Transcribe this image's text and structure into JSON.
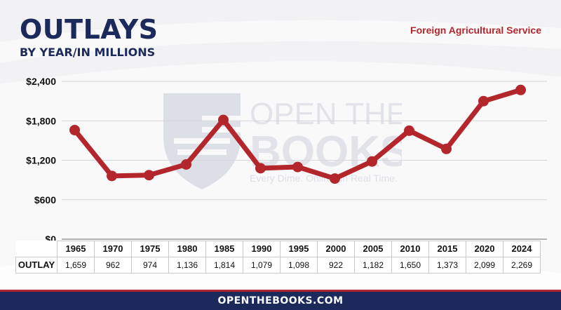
{
  "header": {
    "title": "OUTLAYS",
    "subtitle": "BY YEAR/IN MILLIONS",
    "agency": "Foreign Agricultural Service"
  },
  "watermark": {
    "line1": "OPEN THE",
    "line2": "BOOKS",
    "tagline": "Every Dime. Online. In Real Time."
  },
  "footer": {
    "text": "OPENTHEBOOKS.COM"
  },
  "colors": {
    "line": "#b3262c",
    "navy": "#1b2a5a",
    "accent": "#b3262c"
  },
  "table": {
    "row_label": "OUTLAY"
  },
  "chart_data": {
    "type": "line",
    "title": "OUTLAYS",
    "subtitle": "BY YEAR/IN MILLIONS",
    "categories": [
      "1965",
      "1970",
      "1975",
      "1980",
      "1985",
      "1990",
      "1995",
      "2000",
      "2005",
      "2010",
      "2015",
      "2020",
      "2024"
    ],
    "values": [
      1659,
      962,
      974,
      1136,
      1814,
      1079,
      1098,
      922,
      1182,
      1650,
      1373,
      2099,
      2269
    ],
    "value_labels": [
      "1,659",
      "962",
      "974",
      "1,136",
      "1,814",
      "1,079",
      "1,098",
      "922",
      "1,182",
      "1,650",
      "1,373",
      "2,099",
      "2,269"
    ],
    "yticks": [
      0,
      600,
      1200,
      1800,
      2400
    ],
    "ytick_labels": [
      "$0",
      "$600",
      "$1,200",
      "$1,800",
      "$2,400"
    ],
    "ylim": [
      0,
      2400
    ],
    "grid": true,
    "xlabel": "",
    "ylabel": ""
  }
}
